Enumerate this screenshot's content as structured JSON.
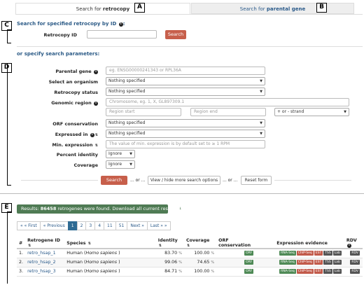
{
  "tabs": [
    {
      "prefix": "Search for ",
      "bold": "retrocopy"
    },
    {
      "prefix": "Search for ",
      "bold": "parental gene"
    }
  ],
  "badges": {
    "A": "A",
    "B": "B",
    "C": "C",
    "D": "D",
    "E": "E"
  },
  "by_id": {
    "title": "Search for specified retrocopy by ID",
    "title_suffix": ":",
    "label": "Retrocopy ID",
    "value": "",
    "button": "Search"
  },
  "params": {
    "title": "or specify search parameters:",
    "fields": {
      "parental_gene": {
        "label": "Parental gene",
        "placeholder": "eg. ENSG00000241343 or RPL36A"
      },
      "organism": {
        "label": "Select an organism",
        "value": "Nothing specified"
      },
      "status": {
        "label": "Retrocopy status",
        "value": "Nothing specified"
      },
      "region": {
        "label": "Genomic region",
        "placeholder": "Chromosome, eg. 1, X, GL897309.1",
        "start": "Region start",
        "end": "Region end",
        "strand": "+ or - strand"
      },
      "orf": {
        "label": "ORF conservation",
        "value": "Nothing specified"
      },
      "expressed": {
        "label": "Expressed in",
        "value": "Nothing specified"
      },
      "min_expr": {
        "label": "Min. expression",
        "placeholder": "The value of min. expression is by default set to ≥ 1 RPM"
      },
      "identity": {
        "label": "Percent identity",
        "value": "Ignore"
      },
      "coverage": {
        "label": "Coverage",
        "value": "Ignore"
      }
    },
    "buttons": {
      "search": "Search",
      "or1": "... or ...",
      "toggle": "View / hide more search options",
      "or2": "... or ...",
      "reset": "Reset form"
    }
  },
  "results": {
    "prefix": "Results: ",
    "count": "86458",
    "suffix": " retrogenes were found. Download all current results",
    "pager": [
      "« « First",
      "« Previous",
      "1",
      "2",
      "3",
      "4",
      "11",
      "51",
      "Next »",
      "Last » »"
    ],
    "active_page": "1",
    "columns": [
      "#",
      "Retrogene ID",
      "Species",
      "Identity",
      "Coverage",
      "ORF conservation",
      "Expression evidence",
      "RDV"
    ],
    "rows": [
      {
        "n": "1.",
        "id": "retro_hsap_1",
        "species": "Human",
        "latin": "Homo sapiens",
        "identity": "83.70",
        "coverage": "100.00",
        "orf": "ORF",
        "evidence": [
          "RNA-Seq",
          "ChIP-Seq",
          "EST",
          "TSS",
          "Lab"
        ],
        "rdv": "RDV"
      },
      {
        "n": "2.",
        "id": "retro_hsap_2",
        "species": "Human",
        "latin": "Homo sapiens",
        "identity": "99.06",
        "coverage": "74.65",
        "orf": "ORF",
        "evidence": [
          "RNA-Seq",
          "ChIP-Seq",
          "EST",
          "TSS",
          "Lab"
        ],
        "rdv": "RDV"
      },
      {
        "n": "3.",
        "id": "retro_hsap_3",
        "species": "Human",
        "latin": "Homo sapiens",
        "identity": "84.71",
        "coverage": "100.00",
        "orf": "ORF",
        "evidence": [
          "RNA-Seq",
          "ChIP-Seq",
          "EST",
          "TSS",
          "Lab"
        ],
        "rdv": "RDV"
      }
    ],
    "percent_sign": "%"
  },
  "colors": {
    "accent": "#2b5a86",
    "danger": "#c75f4b",
    "success": "#4f7b54"
  },
  "icons": {
    "info": "info-icon",
    "sort": "sort-icon",
    "download": "download-icon",
    "caret": "caret-down-icon"
  }
}
